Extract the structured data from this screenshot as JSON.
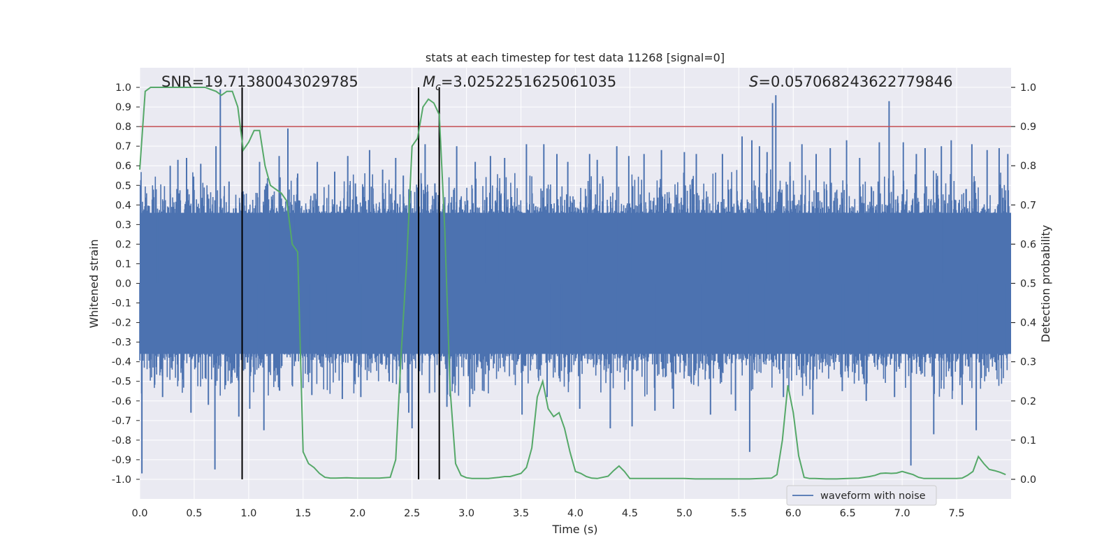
{
  "chart_data": {
    "type": "line",
    "title": "stats at each timestep for test data 11268 [signal=0]",
    "xlabel": "Time (s)",
    "ylabel": "Whitened strain",
    "ylabel_right": "Detection probability",
    "xlim": [
      0.0,
      8.0
    ],
    "ylim": [
      -1.1,
      1.1
    ],
    "ylim_right": [
      -0.05,
      1.05
    ],
    "grid": true,
    "legend_placement": "lower-center",
    "x_ticks": [
      "0.0",
      "0.5",
      "1.0",
      "1.5",
      "2.0",
      "2.5",
      "3.0",
      "3.5",
      "4.0",
      "4.5",
      "5.0",
      "5.5",
      "6.0",
      "6.5",
      "7.0",
      "7.5"
    ],
    "y_ticks": [
      "1.0",
      "0.9",
      "0.8",
      "0.7",
      "0.6",
      "0.5",
      "0.4",
      "0.3",
      "0.2",
      "0.1",
      "0.0",
      "-0.1",
      "-0.2",
      "-0.3",
      "-0.4",
      "-0.5",
      "-0.6",
      "-0.7",
      "-0.8",
      "-0.9",
      "-1.0"
    ],
    "y_ticks_right": [
      "1.0",
      "0.9",
      "0.8",
      "0.7",
      "0.6",
      "0.5",
      "0.4",
      "0.3",
      "0.2",
      "0.1",
      "0.0"
    ],
    "annotations": {
      "snr": "SNR=19.71380043029785",
      "mc_symbol": "M",
      "mc_sub": "c",
      "mc_value": "=3.0252251625061035",
      "s_symbol": "S",
      "s_value": "=0.057068243622779846"
    },
    "threshold": {
      "y_right": 0.9,
      "color": "#c44e52"
    },
    "vertical_lines": [
      {
        "x": 0.94,
        "ymin": -1.0,
        "ymax": 1.0
      },
      {
        "x": 2.56,
        "ymin": -1.0,
        "ymax": 1.0
      },
      {
        "x": 2.75,
        "ymin": -1.0,
        "ymax": 1.0
      }
    ],
    "series": [
      {
        "name": "waveform with noise",
        "axis": "left",
        "color": "#4c72b0",
        "envelope_abs": 0.36,
        "peaks": [
          {
            "x": 0.02,
            "y": -0.97
          },
          {
            "x": 0.15,
            "y": 0.48
          },
          {
            "x": 0.21,
            "y": -0.58
          },
          {
            "x": 0.28,
            "y": 0.6
          },
          {
            "x": 0.35,
            "y": 0.63
          },
          {
            "x": 0.43,
            "y": 0.64
          },
          {
            "x": 0.47,
            "y": -0.66
          },
          {
            "x": 0.56,
            "y": 0.61
          },
          {
            "x": 0.63,
            "y": -0.62
          },
          {
            "x": 0.69,
            "y": -0.95
          },
          {
            "x": 0.7,
            "y": 0.7
          },
          {
            "x": 0.74,
            "y": 0.99
          },
          {
            "x": 0.82,
            "y": 0.52
          },
          {
            "x": 0.91,
            "y": -0.68
          },
          {
            "x": 0.94,
            "y": 0.94
          },
          {
            "x": 1.01,
            "y": -0.64
          },
          {
            "x": 1.1,
            "y": 0.62
          },
          {
            "x": 1.14,
            "y": -0.75
          },
          {
            "x": 1.28,
            "y": 0.65
          },
          {
            "x": 1.36,
            "y": 0.79
          },
          {
            "x": 1.4,
            "y": -0.52
          },
          {
            "x": 1.45,
            "y": 0.56
          },
          {
            "x": 1.58,
            "y": -0.57
          },
          {
            "x": 1.63,
            "y": 0.62
          },
          {
            "x": 1.79,
            "y": 0.57
          },
          {
            "x": 1.86,
            "y": -0.59
          },
          {
            "x": 1.91,
            "y": 0.65
          },
          {
            "x": 1.98,
            "y": 0.51
          },
          {
            "x": 2.03,
            "y": -0.58
          },
          {
            "x": 2.11,
            "y": 0.68
          },
          {
            "x": 2.23,
            "y": 0.58
          },
          {
            "x": 2.29,
            "y": -0.5
          },
          {
            "x": 2.35,
            "y": 0.64
          },
          {
            "x": 2.39,
            "y": -0.56
          },
          {
            "x": 2.42,
            "y": 0.55
          },
          {
            "x": 2.47,
            "y": -0.66
          },
          {
            "x": 2.5,
            "y": -0.74
          },
          {
            "x": 2.62,
            "y": 0.71
          },
          {
            "x": 2.66,
            "y": -0.56
          },
          {
            "x": 2.71,
            "y": 0.51
          },
          {
            "x": 2.82,
            "y": -0.63
          },
          {
            "x": 2.91,
            "y": 0.7
          },
          {
            "x": 3.03,
            "y": -0.63
          },
          {
            "x": 3.08,
            "y": 0.62
          },
          {
            "x": 3.16,
            "y": -0.55
          },
          {
            "x": 3.22,
            "y": 0.65
          },
          {
            "x": 3.35,
            "y": 0.64
          },
          {
            "x": 3.51,
            "y": -0.67
          },
          {
            "x": 3.55,
            "y": 0.71
          },
          {
            "x": 3.71,
            "y": 0.71
          },
          {
            "x": 3.74,
            "y": -0.58
          },
          {
            "x": 3.83,
            "y": 0.66
          },
          {
            "x": 3.93,
            "y": 0.62
          },
          {
            "x": 4.04,
            "y": -0.64
          },
          {
            "x": 4.13,
            "y": 0.66
          },
          {
            "x": 4.2,
            "y": 0.63
          },
          {
            "x": 4.32,
            "y": -0.74
          },
          {
            "x": 4.38,
            "y": 0.7
          },
          {
            "x": 4.49,
            "y": 0.65
          },
          {
            "x": 4.52,
            "y": -0.73
          },
          {
            "x": 4.63,
            "y": 0.66
          },
          {
            "x": 4.73,
            "y": -0.65
          },
          {
            "x": 4.79,
            "y": 0.68
          },
          {
            "x": 4.9,
            "y": -0.64
          },
          {
            "x": 5.0,
            "y": 0.67
          },
          {
            "x": 5.11,
            "y": 0.66
          },
          {
            "x": 5.24,
            "y": -0.67
          },
          {
            "x": 5.35,
            "y": 0.66
          },
          {
            "x": 5.47,
            "y": -0.65
          },
          {
            "x": 5.53,
            "y": 0.75
          },
          {
            "x": 5.6,
            "y": -0.86
          },
          {
            "x": 5.62,
            "y": 0.73
          },
          {
            "x": 5.69,
            "y": 0.7
          },
          {
            "x": 5.76,
            "y": 0.67
          },
          {
            "x": 5.81,
            "y": 0.92
          },
          {
            "x": 5.84,
            "y": 0.96
          },
          {
            "x": 5.91,
            "y": -0.58
          },
          {
            "x": 5.97,
            "y": 0.62
          },
          {
            "x": 6.08,
            "y": 0.71
          },
          {
            "x": 6.18,
            "y": -0.67
          },
          {
            "x": 6.21,
            "y": 0.66
          },
          {
            "x": 6.34,
            "y": 0.69
          },
          {
            "x": 6.45,
            "y": -0.55
          },
          {
            "x": 6.49,
            "y": 0.73
          },
          {
            "x": 6.61,
            "y": 0.64
          },
          {
            "x": 6.67,
            "y": -0.6
          },
          {
            "x": 6.79,
            "y": 0.72
          },
          {
            "x": 6.88,
            "y": 0.93
          },
          {
            "x": 6.93,
            "y": -0.58
          },
          {
            "x": 7.01,
            "y": 0.72
          },
          {
            "x": 7.08,
            "y": -0.93
          },
          {
            "x": 7.13,
            "y": 0.66
          },
          {
            "x": 7.21,
            "y": 0.69
          },
          {
            "x": 7.29,
            "y": -0.77
          },
          {
            "x": 7.36,
            "y": 0.7
          },
          {
            "x": 7.45,
            "y": 0.73
          },
          {
            "x": 7.55,
            "y": -0.62
          },
          {
            "x": 7.64,
            "y": 0.71
          },
          {
            "x": 7.68,
            "y": -0.75
          },
          {
            "x": 7.78,
            "y": 0.68
          },
          {
            "x": 7.89,
            "y": 0.69
          },
          {
            "x": 7.97,
            "y": 0.66
          }
        ]
      },
      {
        "axis": "right",
        "color": "#55a868",
        "x": [
          0.0,
          0.05,
          0.1,
          0.15,
          0.2,
          0.25,
          0.3,
          0.35,
          0.4,
          0.45,
          0.5,
          0.55,
          0.6,
          0.65,
          0.7,
          0.75,
          0.8,
          0.85,
          0.9,
          0.95,
          1.0,
          1.05,
          1.1,
          1.15,
          1.2,
          1.25,
          1.3,
          1.35,
          1.4,
          1.45,
          1.5,
          1.55,
          1.6,
          1.65,
          1.7,
          1.75,
          1.8,
          1.9,
          2.0,
          2.1,
          2.2,
          2.3,
          2.35,
          2.4,
          2.45,
          2.5,
          2.55,
          2.6,
          2.65,
          2.7,
          2.75,
          2.8,
          2.85,
          2.9,
          2.95,
          3.0,
          3.05,
          3.1,
          3.2,
          3.3,
          3.35,
          3.4,
          3.5,
          3.55,
          3.6,
          3.65,
          3.7,
          3.75,
          3.8,
          3.85,
          3.9,
          3.95,
          4.0,
          4.05,
          4.1,
          4.15,
          4.2,
          4.3,
          4.35,
          4.4,
          4.45,
          4.5,
          4.55,
          4.6,
          4.7,
          4.8,
          4.9,
          5.0,
          5.1,
          5.2,
          5.3,
          5.4,
          5.5,
          5.6,
          5.7,
          5.8,
          5.85,
          5.9,
          5.95,
          6.0,
          6.05,
          6.1,
          6.15,
          6.2,
          6.3,
          6.4,
          6.5,
          6.6,
          6.7,
          6.75,
          6.8,
          6.85,
          6.9,
          6.95,
          7.0,
          7.05,
          7.1,
          7.15,
          7.2,
          7.3,
          7.4,
          7.5,
          7.55,
          7.6,
          7.65,
          7.7,
          7.75,
          7.8,
          7.85,
          7.9,
          7.95
        ],
        "values": [
          0.79,
          0.99,
          1.0,
          1.0,
          1.0,
          1.0,
          1.0,
          1.0,
          1.0,
          1.0,
          1.0,
          1.0,
          1.0,
          0.995,
          0.99,
          0.98,
          0.99,
          0.99,
          0.95,
          0.84,
          0.86,
          0.89,
          0.89,
          0.8,
          0.75,
          0.74,
          0.73,
          0.71,
          0.6,
          0.58,
          0.07,
          0.04,
          0.03,
          0.015,
          0.005,
          0.003,
          0.003,
          0.004,
          0.003,
          0.003,
          0.003,
          0.005,
          0.05,
          0.32,
          0.55,
          0.85,
          0.87,
          0.95,
          0.97,
          0.96,
          0.93,
          0.64,
          0.23,
          0.04,
          0.01,
          0.004,
          0.002,
          0.002,
          0.002,
          0.005,
          0.007,
          0.007,
          0.015,
          0.03,
          0.08,
          0.21,
          0.25,
          0.18,
          0.16,
          0.17,
          0.13,
          0.07,
          0.02,
          0.015,
          0.007,
          0.003,
          0.002,
          0.008,
          0.022,
          0.034,
          0.02,
          0.002,
          0.002,
          0.002,
          0.002,
          0.002,
          0.002,
          0.002,
          0.001,
          0.001,
          0.001,
          0.001,
          0.001,
          0.001,
          0.002,
          0.003,
          0.012,
          0.1,
          0.24,
          0.17,
          0.06,
          0.005,
          0.002,
          0.002,
          0.001,
          0.001,
          0.002,
          0.003,
          0.007,
          0.01,
          0.015,
          0.016,
          0.015,
          0.016,
          0.02,
          0.016,
          0.012,
          0.005,
          0.002,
          0.002,
          0.002,
          0.002,
          0.003,
          0.01,
          0.02,
          0.058,
          0.04,
          0.025,
          0.022,
          0.018,
          0.012
        ]
      }
    ]
  }
}
